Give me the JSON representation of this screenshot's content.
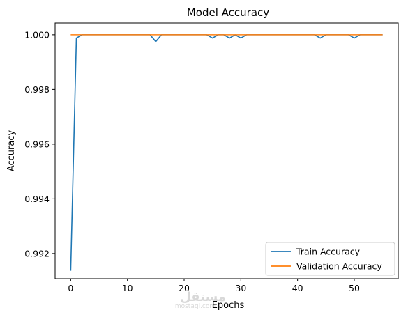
{
  "chart_data": {
    "type": "line",
    "title": "Model Accuracy",
    "xlabel": "Epochs",
    "ylabel": "Accuracy",
    "xlim": [
      -2.75,
      57.75
    ],
    "ylim": [
      0.99108,
      1.00043
    ],
    "xticks": [
      0,
      10,
      20,
      30,
      40,
      50
    ],
    "yticks": [
      0.992,
      0.994,
      0.996,
      0.998,
      1.0
    ],
    "ytick_labels": [
      "0.992",
      "0.994",
      "0.996",
      "0.998",
      "1.000"
    ],
    "grid": false,
    "legend_position": "lower right",
    "series": [
      {
        "name": "Train Accuracy",
        "color": "#1f77b4",
        "x": [
          0,
          1,
          2,
          14,
          15,
          16,
          24,
          25,
          26,
          27,
          28,
          29,
          30,
          31,
          43,
          44,
          45,
          49,
          50,
          51,
          55
        ],
        "y": [
          0.99137,
          0.99988,
          1.0,
          1.0,
          0.99975,
          1.0,
          1.0,
          0.99988,
          1.0,
          1.0,
          0.99988,
          1.0,
          0.99988,
          1.0,
          1.0,
          0.99988,
          1.0,
          1.0,
          0.99988,
          1.0,
          1.0
        ]
      },
      {
        "name": "Validation Accuracy",
        "color": "#ff7f0e",
        "x": [
          0,
          55
        ],
        "y": [
          1.0,
          1.0
        ]
      }
    ]
  },
  "watermark": {
    "text": "مستقل",
    "subtext": "mostaql.com"
  }
}
